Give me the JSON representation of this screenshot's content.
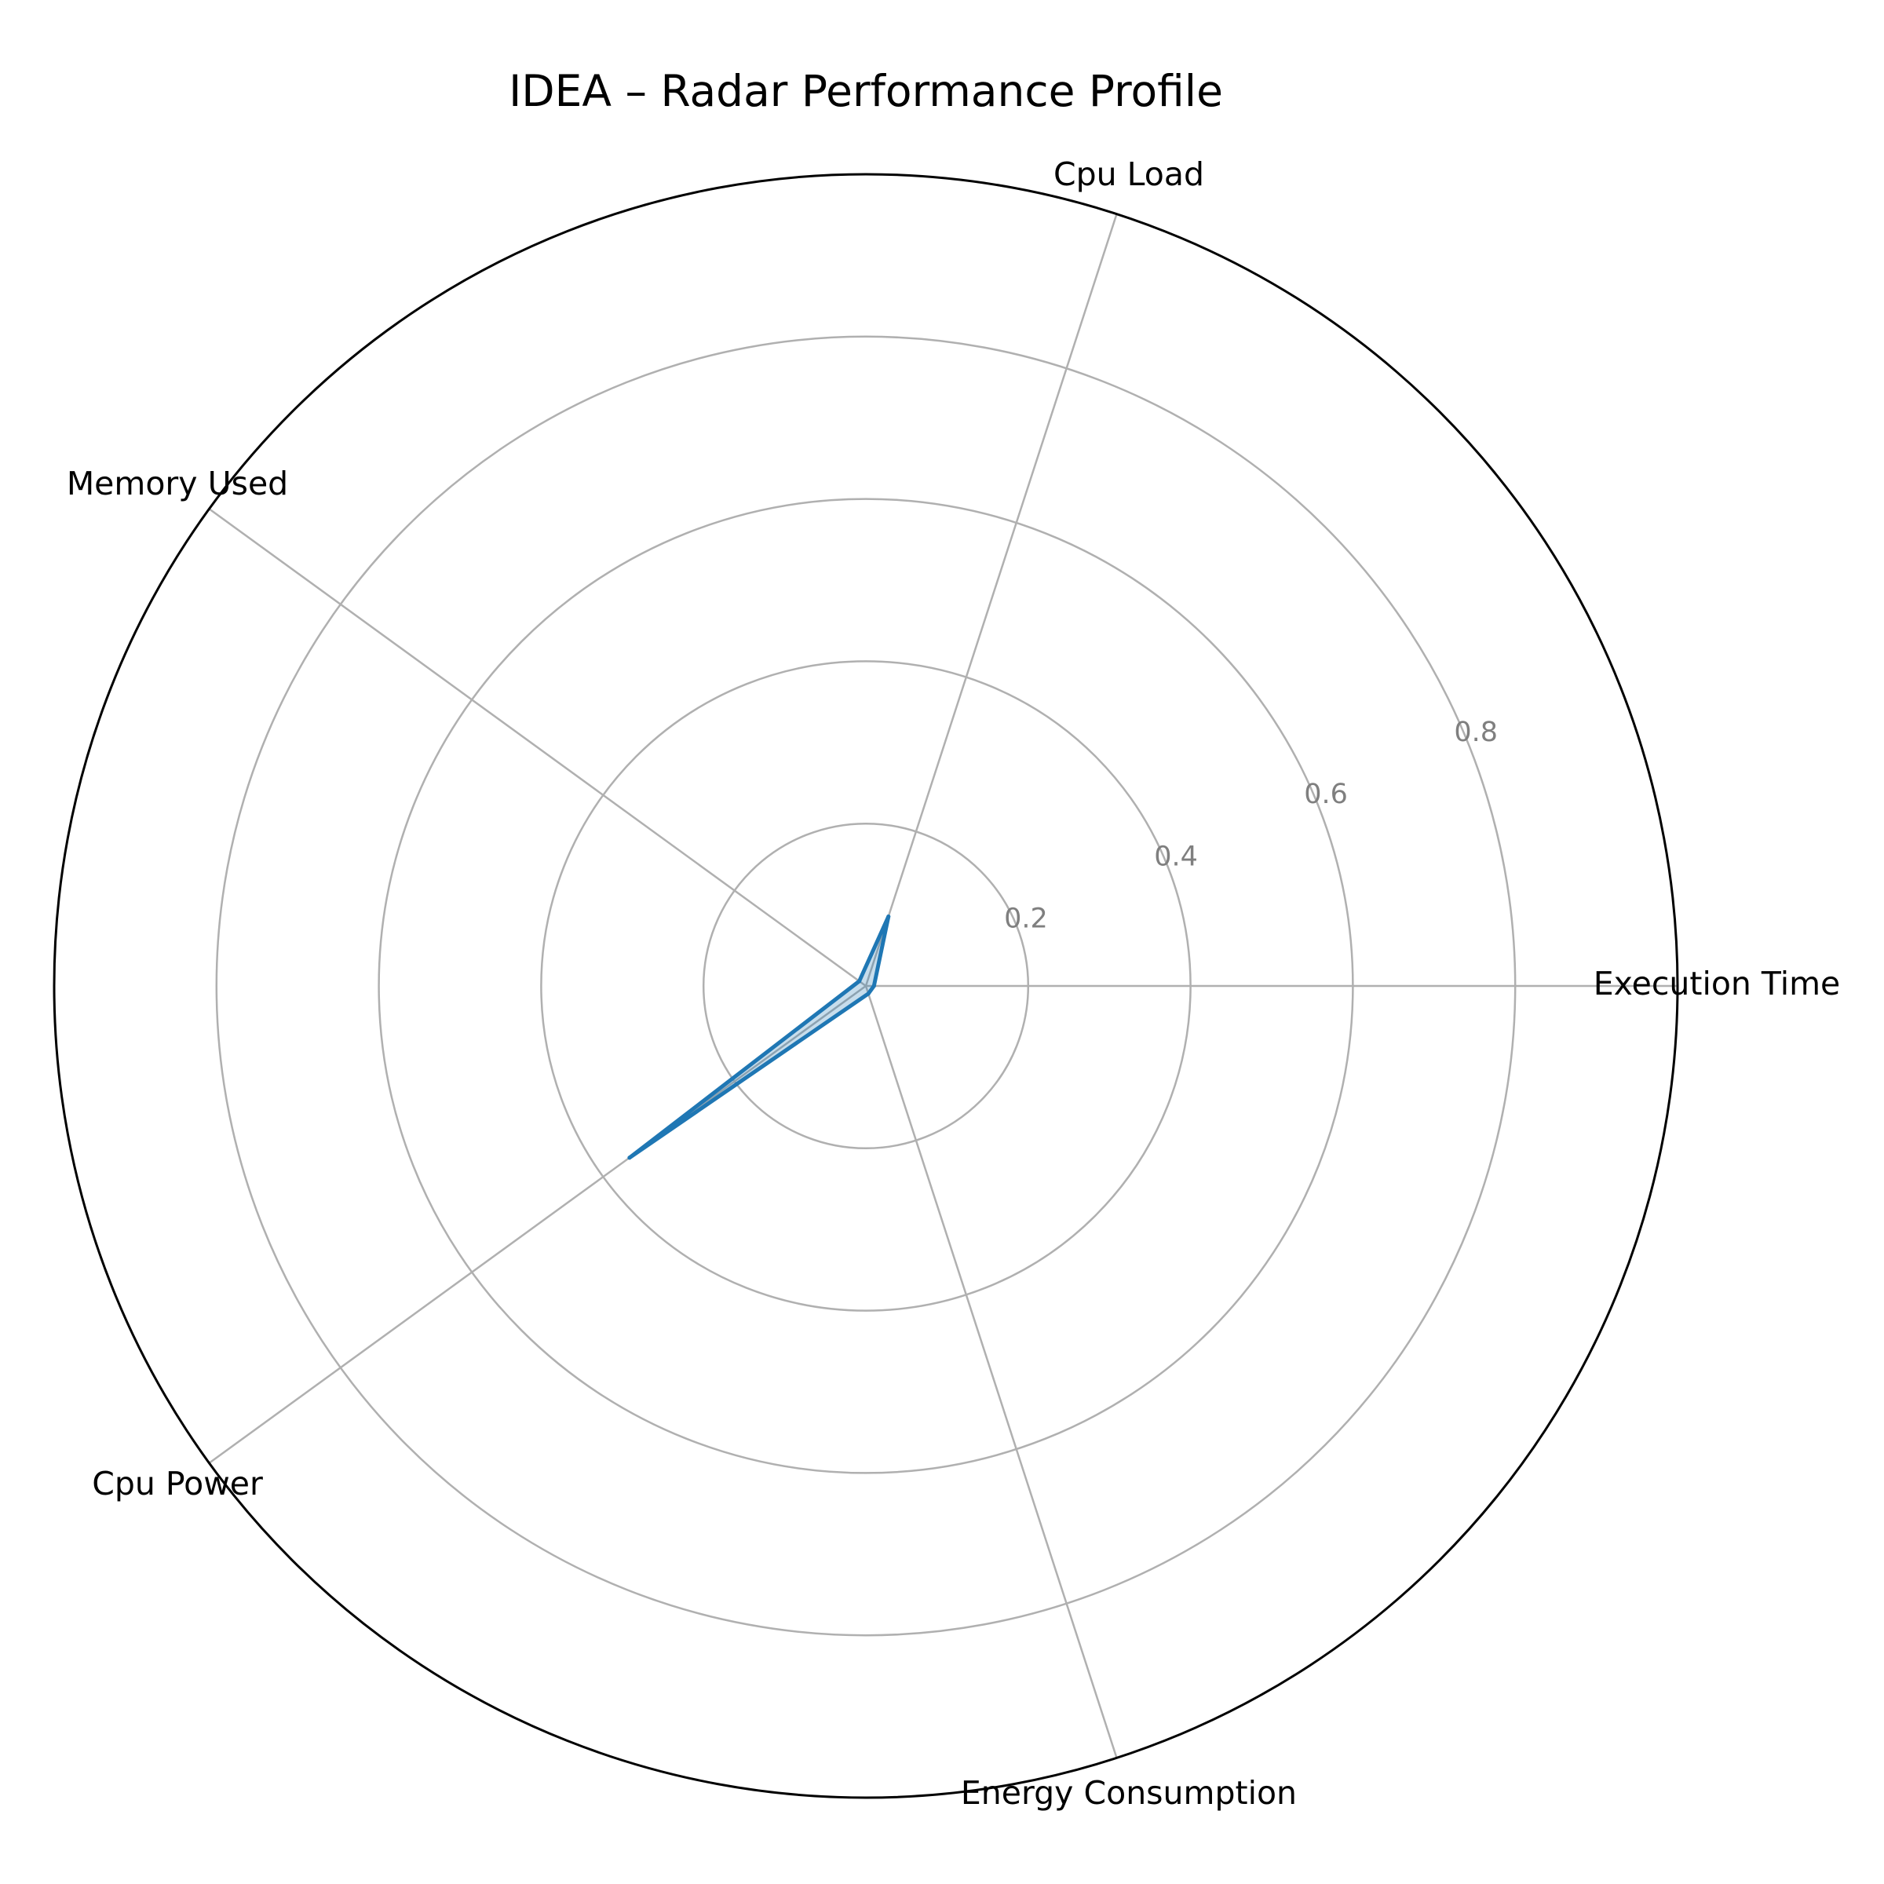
{
  "chart_data": {
    "type": "radar",
    "title": "IDEA – Radar Performance Profile",
    "axes": [
      "Execution Time",
      "Cpu Load",
      "Memory Used",
      "Cpu Power",
      "Energy Consumption"
    ],
    "series": [
      {
        "values": [
          0.01,
          0.09,
          0.01,
          0.36,
          0.01
        ],
        "color": "#1f77b4"
      }
    ],
    "rlim": [
      0,
      1.0
    ],
    "rticks": [
      0.2,
      0.4,
      0.6,
      0.8
    ],
    "rtick_labels": [
      "0.2",
      "0.4",
      "0.6",
      "0.8"
    ],
    "grid": true,
    "fill_color": "#1f77b4",
    "fill_opacity": 0.25
  }
}
